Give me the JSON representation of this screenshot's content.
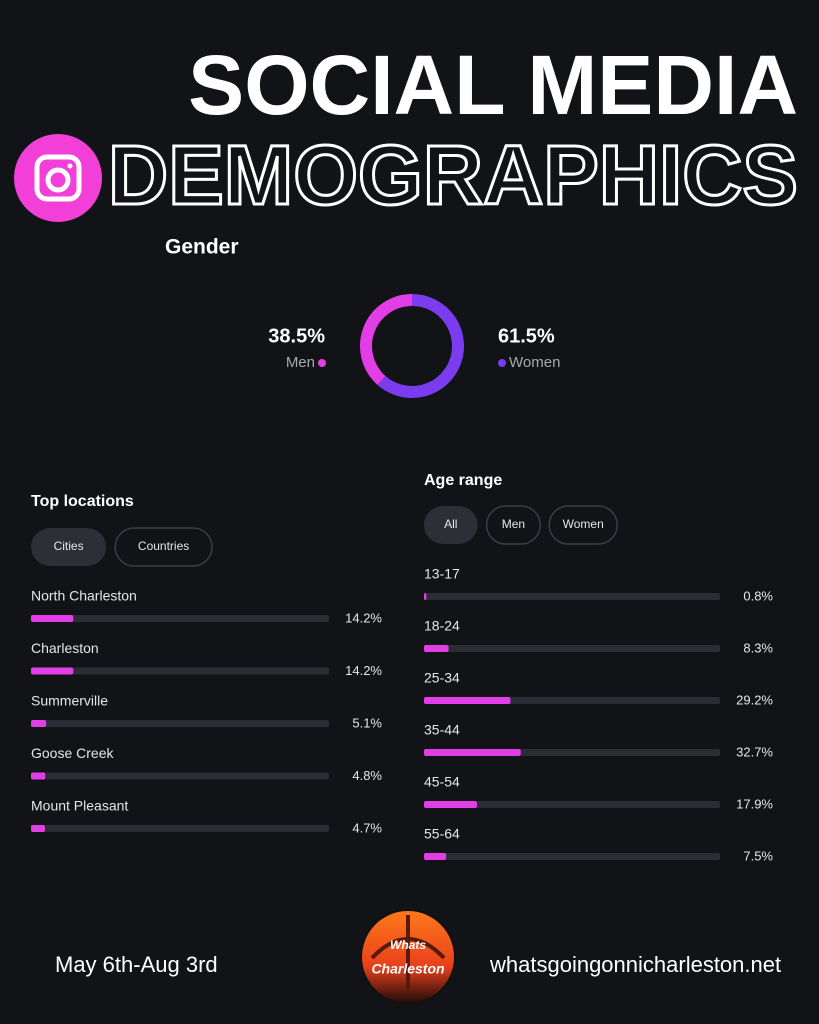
{
  "header": {
    "title_line1": "SOCIAL MEDIA",
    "title_line2": "DEMOGRAPHICS"
  },
  "chart_data": [
    {
      "type": "pie",
      "title": "Gender",
      "donut": true,
      "series": [
        {
          "name": "Men",
          "color": "#e23ee6",
          "values": [
            38.5
          ],
          "value_labels": [
            "38.5%"
          ]
        },
        {
          "name": "Women",
          "color": "#7b3cf0",
          "values": [
            61.5
          ],
          "value_labels": [
            "61.5%"
          ]
        }
      ]
    },
    {
      "type": "bar",
      "orientation": "horizontal",
      "title": "Top locations",
      "filters": [
        "Cities",
        "Countries"
      ],
      "active_filter": 0,
      "categories": [
        "North Charleston",
        "Charleston",
        "Summerville",
        "Goose Creek",
        "Mount Pleasant"
      ],
      "values": [
        14.2,
        14.2,
        5.1,
        4.8,
        4.7
      ],
      "value_labels": [
        "14.2%",
        "14.2%",
        "5.1%",
        "4.8%",
        "4.7%"
      ],
      "xlim": [
        0,
        100
      ],
      "color": "#e23ee6"
    },
    {
      "type": "bar",
      "orientation": "horizontal",
      "title": "Age range",
      "filters": [
        "All",
        "Men",
        "Women"
      ],
      "active_filter": 0,
      "categories": [
        "13-17",
        "18-24",
        "25-34",
        "35-44",
        "45-54",
        "55-64"
      ],
      "values": [
        0.8,
        8.3,
        29.2,
        32.7,
        17.9,
        7.5
      ],
      "value_labels": [
        "0.8%",
        "8.3%",
        "29.2%",
        "32.7%",
        "17.9%",
        "7.5%"
      ],
      "xlim": [
        0,
        100
      ],
      "color": "#e23ee6"
    }
  ],
  "footer": {
    "date_range": "May 6th-Aug 3rd",
    "website": "whatsgoingonnicharleston.net",
    "logo_text": [
      "Whats",
      "Charleston"
    ]
  }
}
